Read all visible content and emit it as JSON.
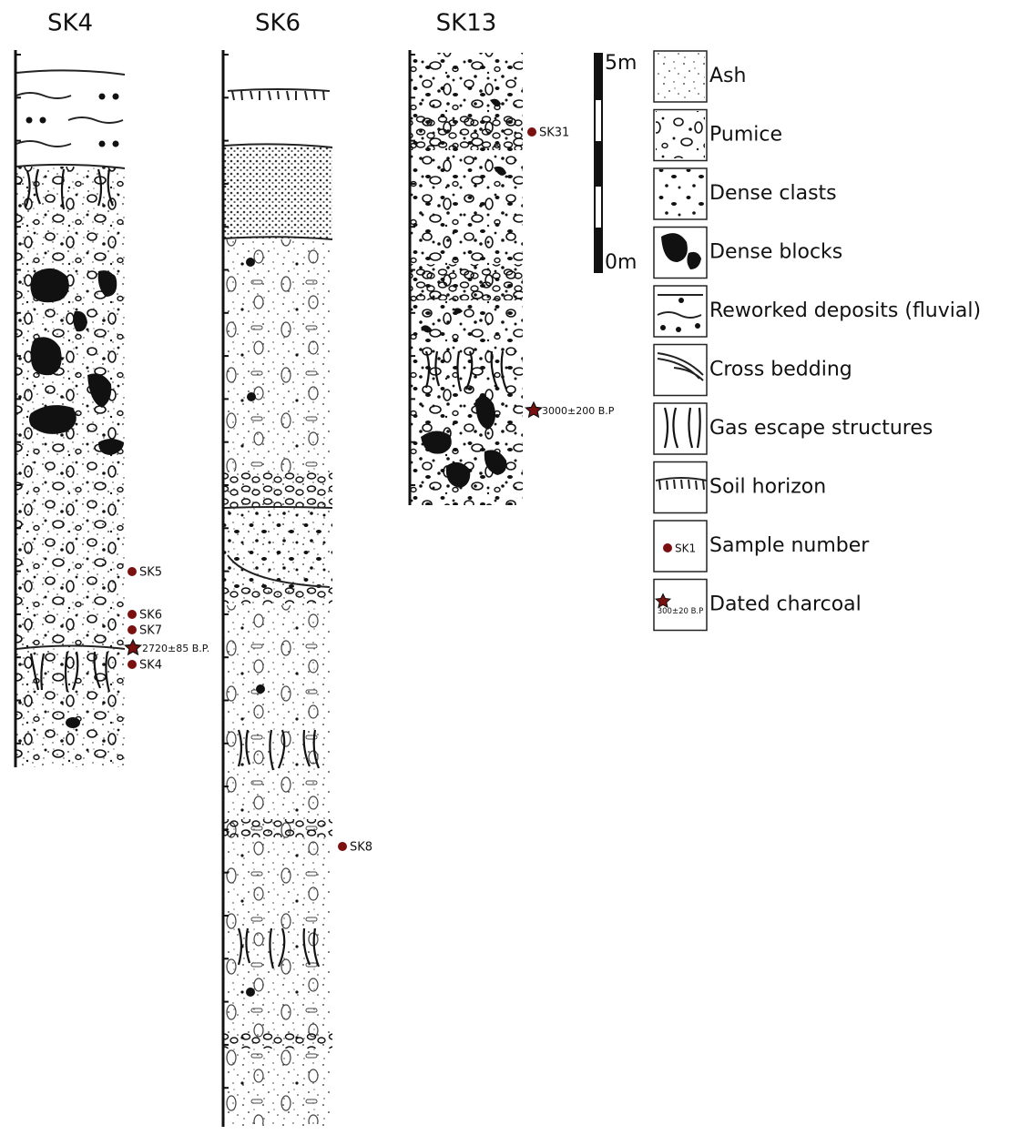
{
  "columns": [
    {
      "name": "SK4",
      "samples": [
        "SK5",
        "SK6",
        "SK7",
        "SK4"
      ],
      "dates": [
        "2720±85 B.P."
      ]
    },
    {
      "name": "SK6",
      "samples": [
        "SK8"
      ],
      "dates": []
    },
    {
      "name": "SK13",
      "samples": [
        "SK31"
      ],
      "dates": [
        "3000±200 B.P"
      ]
    }
  ],
  "scale": {
    "top": "5m",
    "bottom": "0m"
  },
  "legend": [
    {
      "label": "Ash"
    },
    {
      "label": "Pumice"
    },
    {
      "label": "Dense clasts"
    },
    {
      "label": "Dense blocks"
    },
    {
      "label": "Reworked deposits (fluvial)"
    },
    {
      "label": "Cross bedding"
    },
    {
      "label": "Gas escape structures"
    },
    {
      "label": "Soil horizon"
    },
    {
      "label": "Sample number",
      "icon_text": "SK1"
    },
    {
      "label": "Dated charcoal",
      "icon_text": "300±20 B.P"
    }
  ]
}
